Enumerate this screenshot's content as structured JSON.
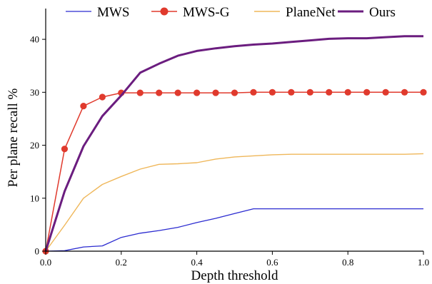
{
  "chart_data": {
    "type": "line",
    "title": "",
    "xlabel": "Depth threshold",
    "ylabel": "Per plane recall %",
    "xlim": [
      0.0,
      1.0
    ],
    "ylim": [
      0,
      45
    ],
    "xticks": [
      0.0,
      0.2,
      0.4,
      0.6,
      0.8,
      1.0
    ],
    "xtick_labels": [
      "0.0",
      "0.2",
      "0.4",
      "0.6",
      "0.8",
      "1.0"
    ],
    "yticks": [
      0,
      10,
      20,
      30,
      40
    ],
    "ytick_labels": [
      "0",
      "10",
      "20",
      "30",
      "40"
    ],
    "grid": false,
    "legend_position": "top",
    "x": [
      0.0,
      0.05,
      0.1,
      0.15,
      0.2,
      0.25,
      0.3,
      0.35,
      0.4,
      0.45,
      0.5,
      0.55,
      0.6,
      0.65,
      0.7,
      0.75,
      0.8,
      0.85,
      0.9,
      0.95,
      1.0
    ],
    "series": [
      {
        "name": "MWS",
        "color": "#2b2bd0",
        "marker": "none",
        "values": [
          0.0,
          0.1,
          0.8,
          1.0,
          2.6,
          3.4,
          3.9,
          4.5,
          5.4,
          6.2,
          7.1,
          8.0,
          8.0,
          8.0,
          8.0,
          8.0,
          8.0,
          8.0,
          8.0,
          8.0,
          8.0
        ]
      },
      {
        "name": "MWS-G",
        "color": "#e03a2d",
        "marker": "circle",
        "values": [
          0.0,
          19.3,
          27.4,
          29.1,
          29.9,
          29.9,
          29.9,
          29.9,
          29.9,
          29.9,
          29.9,
          30.0,
          30.0,
          30.0,
          30.0,
          30.0,
          30.0,
          30.0,
          30.0,
          30.0,
          30.0
        ]
      },
      {
        "name": "PlaneNet",
        "color": "#efb75a",
        "marker": "none",
        "values": [
          0.0,
          4.9,
          10.0,
          12.6,
          14.1,
          15.5,
          16.4,
          16.5,
          16.7,
          17.4,
          17.8,
          18.0,
          18.2,
          18.3,
          18.3,
          18.3,
          18.3,
          18.3,
          18.3,
          18.3,
          18.4
        ]
      },
      {
        "name": "Ours",
        "color": "#6b1d7f",
        "marker": "none",
        "values": [
          0.0,
          11.3,
          19.8,
          25.5,
          29.4,
          33.7,
          35.4,
          36.9,
          37.8,
          38.3,
          38.7,
          39.0,
          39.2,
          39.5,
          39.8,
          40.1,
          40.2,
          40.2,
          40.4,
          40.6,
          40.6
        ]
      }
    ]
  }
}
